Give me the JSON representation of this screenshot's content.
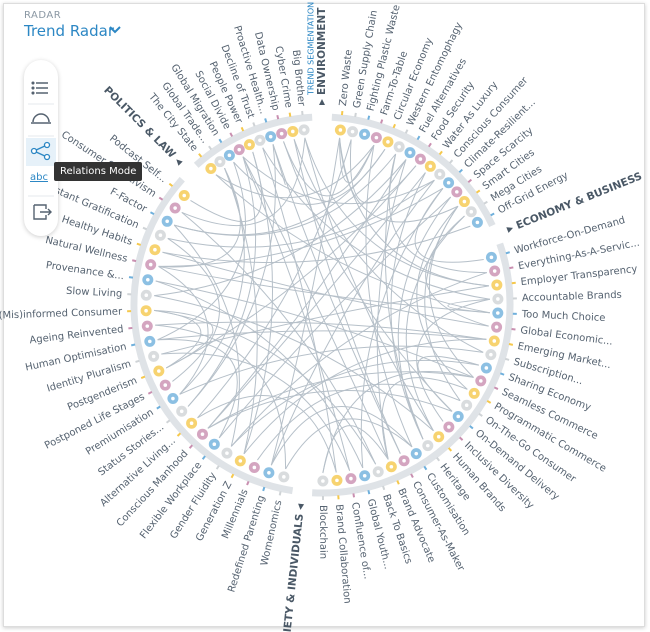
{
  "header": {
    "overline": "RADAR",
    "title": "Trend Radar"
  },
  "toolbar": {
    "abc": "abc",
    "tooltip": "Relations Mode"
  },
  "radar": {
    "segmentation_label": "TREND SEGMENTATION",
    "sectors": [
      {
        "name": "ENVIRONMENT",
        "trends": [
          "Zero Waste",
          "Green Supply Chain",
          "Fighting Plastic Waste",
          "Farm-To-Table",
          "Circular Economy",
          "Western Entomophagy",
          "Fuel Alternatives",
          "Food Security",
          "Water As Luxury",
          "Conscious Consumer",
          "Climate-Resilient...",
          "Space Scarcity",
          "Smart Cities",
          "Mega Cities",
          "Off-Grid Energy"
        ]
      },
      {
        "name": "ECONOMY & BUSINESS",
        "trends": [
          "Workforce-On-Demand",
          "Everything-As-A-Servic...",
          "Employer Transparency",
          "Accountable Brands",
          "Too Much Choice",
          "Global Economic...",
          "Emerging Market...",
          "Subscription...",
          "Sharing Economy",
          "Seamless Commerce",
          "Programmatic Commerce",
          "On-The-Go Consumer",
          "On-Demand Delivery",
          "Inclusive Diversity",
          "Human Brands",
          "Heritage",
          "Customisation",
          "Consumer-As-Maker",
          "Brand Advocate",
          "Back To Basics",
          "Global Youth...",
          "Confluence of...",
          "Brand Collaboration",
          "Blockchain"
        ]
      },
      {
        "name": "SOCIETY & INDIVIDUALS",
        "trends": [
          "Womenomics",
          "Redefined Parenting",
          "Millennials",
          "Generation Z",
          "Gender Fluidity",
          "Flexible Workplace",
          "Conscious Manhood",
          "Alternative Living...",
          "Status Stories...",
          "Premiumisation",
          "Postponed Life Stages",
          "Postgenderism",
          "Identity Pluralism",
          "Human Optimisation",
          "Ageing Reinvented",
          "(Mis)informed Consumer",
          "Slow Living",
          "Provenance &...",
          "Natural Wellness",
          "Healthy Habits",
          "Instant Gratification",
          "F-Factor",
          "Consumer Slacktivism",
          "Podcast Self..."
        ]
      },
      {
        "name": "POLITICS & LAW",
        "trends": [
          "The City State",
          "Global Trade...",
          "Global Migration",
          "Social Divide",
          "People Power",
          "Decline of Trust",
          "Proactive Health...",
          "Data Ownership",
          "Cyber Crime",
          "Big Brother"
        ]
      }
    ]
  }
}
